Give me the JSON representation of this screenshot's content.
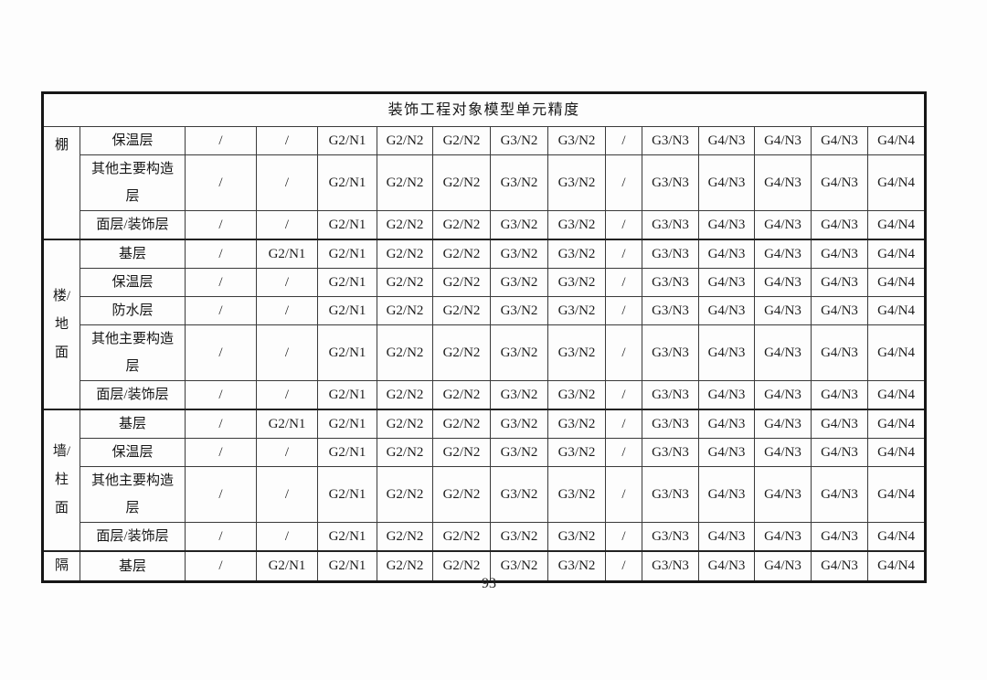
{
  "page_number": "93",
  "table": {
    "title": "装饰工程对象模型单元精度",
    "columns_count": 13,
    "groups": [
      {
        "label": "棚",
        "label_lines": [
          "棚"
        ],
        "rows": [
          {
            "label": "保温层",
            "label_lines": [
              "保温层"
            ],
            "values": [
              "/",
              "/",
              "G2/N1",
              "G2/N2",
              "G2/N2",
              "G3/N2",
              "G3/N2",
              "/",
              "G3/N3",
              "G4/N3",
              "G4/N3",
              "G4/N3",
              "G4/N4"
            ]
          },
          {
            "label": "其他主要构造层",
            "label_lines": [
              "其他主要构造",
              "层"
            ],
            "values": [
              "/",
              "/",
              "G2/N1",
              "G2/N2",
              "G2/N2",
              "G3/N2",
              "G3/N2",
              "/",
              "G3/N3",
              "G4/N3",
              "G4/N3",
              "G4/N3",
              "G4/N4"
            ]
          },
          {
            "label": "面层/装饰层",
            "label_lines": [
              "面层/装饰层"
            ],
            "values": [
              "/",
              "/",
              "G2/N1",
              "G2/N2",
              "G2/N2",
              "G3/N2",
              "G3/N2",
              "/",
              "G3/N3",
              "G4/N3",
              "G4/N3",
              "G4/N3",
              "G4/N4"
            ]
          }
        ]
      },
      {
        "label": "楼/地面",
        "label_lines": [
          "楼/",
          "地",
          "面"
        ],
        "rows": [
          {
            "label": "基层",
            "label_lines": [
              "基层"
            ],
            "values": [
              "/",
              "G2/N1",
              "G2/N1",
              "G2/N2",
              "G2/N2",
              "G3/N2",
              "G3/N2",
              "/",
              "G3/N3",
              "G4/N3",
              "G4/N3",
              "G4/N3",
              "G4/N4"
            ]
          },
          {
            "label": "保温层",
            "label_lines": [
              "保温层"
            ],
            "values": [
              "/",
              "/",
              "G2/N1",
              "G2/N2",
              "G2/N2",
              "G3/N2",
              "G3/N2",
              "/",
              "G3/N3",
              "G4/N3",
              "G4/N3",
              "G4/N3",
              "G4/N4"
            ]
          },
          {
            "label": "防水层",
            "label_lines": [
              "防水层"
            ],
            "values": [
              "/",
              "/",
              "G2/N1",
              "G2/N2",
              "G2/N2",
              "G3/N2",
              "G3/N2",
              "/",
              "G3/N3",
              "G4/N3",
              "G4/N3",
              "G4/N3",
              "G4/N4"
            ]
          },
          {
            "label": "其他主要构造层",
            "label_lines": [
              "其他主要构造",
              "层"
            ],
            "values": [
              "/",
              "/",
              "G2/N1",
              "G2/N2",
              "G2/N2",
              "G3/N2",
              "G3/N2",
              "/",
              "G3/N3",
              "G4/N3",
              "G4/N3",
              "G4/N3",
              "G4/N4"
            ]
          },
          {
            "label": "面层/装饰层",
            "label_lines": [
              "面层/装饰层"
            ],
            "values": [
              "/",
              "/",
              "G2/N1",
              "G2/N2",
              "G2/N2",
              "G3/N2",
              "G3/N2",
              "/",
              "G3/N3",
              "G4/N3",
              "G4/N3",
              "G4/N3",
              "G4/N4"
            ]
          }
        ]
      },
      {
        "label": "墙/柱面",
        "label_lines": [
          "墙/",
          "柱",
          "面"
        ],
        "rows": [
          {
            "label": "基层",
            "label_lines": [
              "基层"
            ],
            "values": [
              "/",
              "G2/N1",
              "G2/N1",
              "G2/N2",
              "G2/N2",
              "G3/N2",
              "G3/N2",
              "/",
              "G3/N3",
              "G4/N3",
              "G4/N3",
              "G4/N3",
              "G4/N4"
            ]
          },
          {
            "label": "保温层",
            "label_lines": [
              "保温层"
            ],
            "values": [
              "/",
              "/",
              "G2/N1",
              "G2/N2",
              "G2/N2",
              "G3/N2",
              "G3/N2",
              "/",
              "G3/N3",
              "G4/N3",
              "G4/N3",
              "G4/N3",
              "G4/N4"
            ]
          },
          {
            "label": "其他主要构造层",
            "label_lines": [
              "其他主要构造",
              "层"
            ],
            "values": [
              "/",
              "/",
              "G2/N1",
              "G2/N2",
              "G2/N2",
              "G3/N2",
              "G3/N2",
              "/",
              "G3/N3",
              "G4/N3",
              "G4/N3",
              "G4/N3",
              "G4/N4"
            ]
          },
          {
            "label": "面层/装饰层",
            "label_lines": [
              "面层/装饰层"
            ],
            "values": [
              "/",
              "/",
              "G2/N1",
              "G2/N2",
              "G2/N2",
              "G3/N2",
              "G3/N2",
              "/",
              "G3/N3",
              "G4/N3",
              "G4/N3",
              "G4/N3",
              "G4/N4"
            ]
          }
        ]
      },
      {
        "label": "隔",
        "label_lines": [
          "隔"
        ],
        "rows": [
          {
            "label": "基层",
            "label_lines": [
              "基层"
            ],
            "values": [
              "/",
              "G2/N1",
              "G2/N1",
              "G2/N2",
              "G2/N2",
              "G3/N2",
              "G3/N2",
              "/",
              "G3/N3",
              "G4/N3",
              "G4/N3",
              "G4/N3",
              "G4/N4"
            ]
          }
        ]
      }
    ]
  }
}
